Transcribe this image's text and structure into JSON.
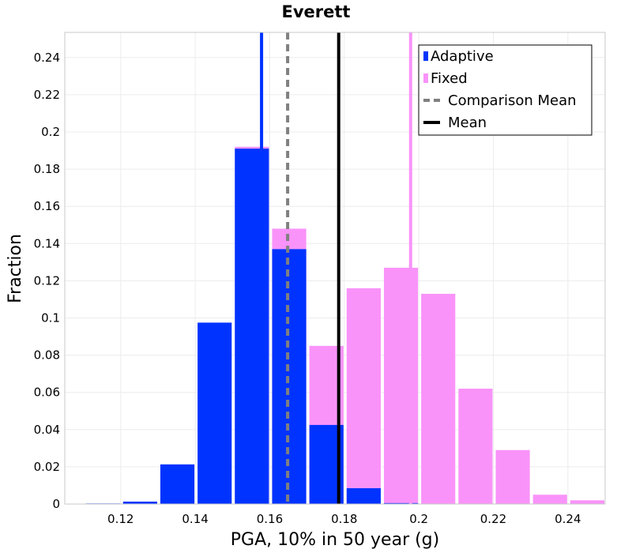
{
  "chart_data": {
    "type": "bar",
    "title": "Everett",
    "xlabel": "PGA, 10% in 50 year (g)",
    "ylabel": "Fraction",
    "xlim": [
      0.105,
      0.25
    ],
    "ylim": [
      0,
      0.2535
    ],
    "xticks": [
      0.12,
      0.14,
      0.16,
      0.18,
      0.2,
      0.22,
      0.24
    ],
    "xtick_labels": [
      "0.12",
      "0.14",
      "0.16",
      "0.18",
      "0.2",
      "0.22",
      "0.24"
    ],
    "yticks": [
      0,
      0.02,
      0.04,
      0.06,
      0.08,
      0.1,
      0.12,
      0.14,
      0.16,
      0.18,
      0.2,
      0.22,
      0.24
    ],
    "ytick_labels": [
      "0",
      "0.02",
      "0.04",
      "0.06",
      "0.08",
      "0.1",
      "0.12",
      "0.14",
      "0.16",
      "0.18",
      "0.2",
      "0.22",
      "0.24"
    ],
    "bin_width": 0.01,
    "grid": true,
    "legend_position": "top-right",
    "bin_centers": [
      0.115,
      0.125,
      0.135,
      0.145,
      0.155,
      0.165,
      0.175,
      0.185,
      0.195,
      0.205,
      0.215,
      0.225,
      0.235,
      0.245
    ],
    "series": [
      {
        "name": "Fixed",
        "color": "#f993f9",
        "values": [
          0,
          0,
          0,
          0,
          0.192,
          0.148,
          0.085,
          0.116,
          0.127,
          0.113,
          0.062,
          0.029,
          0.005,
          0.002
        ]
      },
      {
        "name": "Adaptive",
        "color": "#0033ff",
        "values": [
          0.0003,
          0.0013,
          0.0213,
          0.0975,
          0.191,
          0.137,
          0.0425,
          0.0085,
          0.0005,
          0,
          0,
          0,
          0,
          0
        ]
      }
    ],
    "reference_lines": [
      {
        "name": "Comparison Mean",
        "x": 0.1648,
        "color": "#808080",
        "style": "dashed"
      },
      {
        "name": "Mean",
        "x": 0.1785,
        "color": "#000000",
        "style": "solid"
      }
    ],
    "marker_lines": [
      {
        "series": "Adaptive",
        "x": 0.1578,
        "color": "#0033ff"
      },
      {
        "series": "Fixed",
        "x": 0.1978,
        "color": "#f993f9"
      }
    ],
    "legend": [
      {
        "label": "Adaptive",
        "kind": "bar",
        "color": "#0033ff"
      },
      {
        "label": "Fixed",
        "kind": "bar",
        "color": "#f993f9"
      },
      {
        "label": "Comparison Mean",
        "kind": "dashed",
        "color": "#808080"
      },
      {
        "label": "Mean",
        "kind": "solid",
        "color": "#000000"
      }
    ]
  }
}
